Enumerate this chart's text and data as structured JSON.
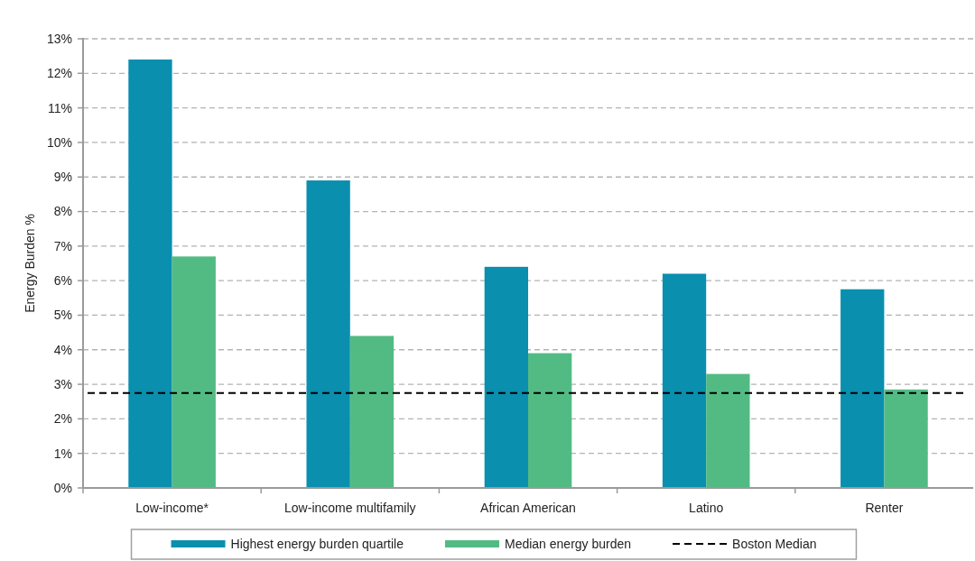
{
  "chart_data": {
    "type": "bar",
    "ylabel": "Energy Burden %",
    "categories": [
      "Low-income*",
      "Low-income multifamily",
      "African American",
      "Latino",
      "Renter"
    ],
    "series": [
      {
        "name": "Highest energy burden quartile",
        "color": "#0a8fae",
        "values": [
          12.4,
          8.9,
          6.4,
          6.2,
          5.75
        ]
      },
      {
        "name": "Median energy burden",
        "color": "#52bb84",
        "values": [
          6.7,
          4.4,
          3.9,
          3.3,
          2.85
        ]
      }
    ],
    "ylim": [
      0,
      13
    ],
    "yticks": [
      {
        "value": 0,
        "label": "0%"
      },
      {
        "value": 1,
        "label": "1%"
      },
      {
        "value": 2,
        "label": "2%"
      },
      {
        "value": 3,
        "label": "3%"
      },
      {
        "value": 4,
        "label": "4%"
      },
      {
        "value": 5,
        "label": "5%"
      },
      {
        "value": 6,
        "label": "6%"
      },
      {
        "value": 7,
        "label": "7%"
      },
      {
        "value": 8,
        "label": "8%"
      },
      {
        "value": 9,
        "label": "9%"
      },
      {
        "value": 10,
        "label": "10%"
      },
      {
        "value": 11,
        "label": "11%"
      },
      {
        "value": 12,
        "label": "12%"
      },
      {
        "value": 13,
        "label": "13%"
      }
    ],
    "grid": "y",
    "legend": "bottom",
    "ref_lines": [
      {
        "axis": "y",
        "value": 2.75,
        "label": "Boston Median",
        "color": "#000000",
        "line_style": "dashed"
      }
    ]
  }
}
